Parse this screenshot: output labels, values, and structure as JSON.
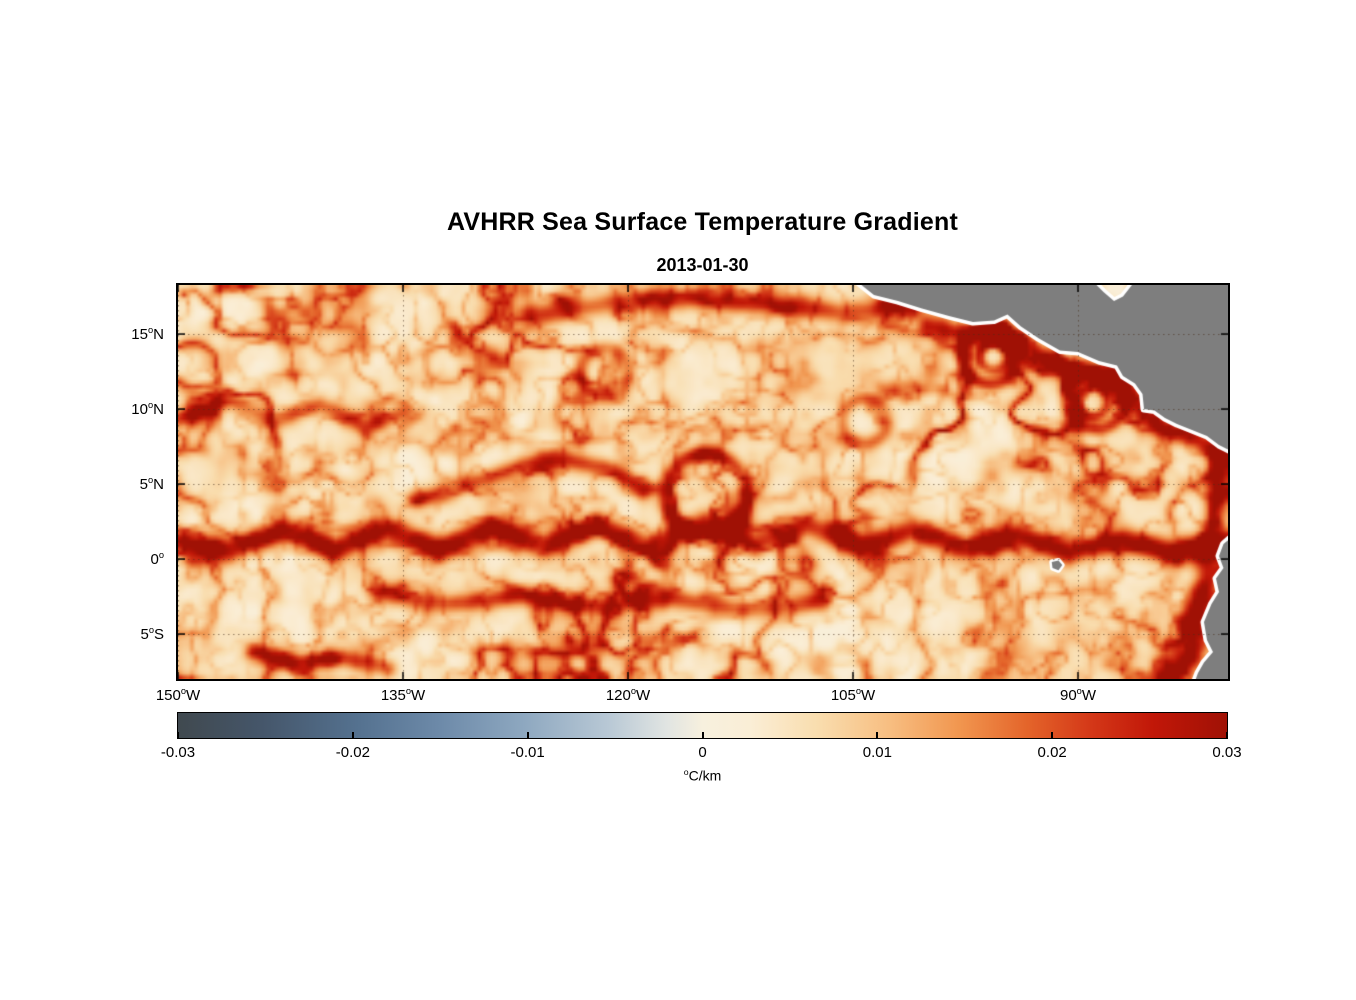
{
  "chart_data": {
    "type": "heatmap",
    "title": "AVHRR Sea Surface Temperature Gradient",
    "subtitle": "2013-01-30",
    "variable": "sea surface temperature gradient",
    "units": "°C/km",
    "lon_range": [
      -150,
      -80
    ],
    "lat_range": [
      -8,
      18.27
    ],
    "grid": {
      "show": true,
      "style": "dotted",
      "color": "rgba(70,45,25,0.55)"
    },
    "x_ticks": [
      {
        "value": -150,
        "label": "150°W"
      },
      {
        "value": -135,
        "label": "135°W"
      },
      {
        "value": -120,
        "label": "120°W"
      },
      {
        "value": -105,
        "label": "105°W"
      },
      {
        "value": -90,
        "label": "90°W"
      }
    ],
    "y_ticks": [
      {
        "value": 15,
        "label": "15°N"
      },
      {
        "value": 10,
        "label": "10°N"
      },
      {
        "value": 5,
        "label": "5°N"
      },
      {
        "value": 0,
        "label": "0°"
      },
      {
        "value": -5,
        "label": "5°S"
      }
    ],
    "colorbar": {
      "min": -0.03,
      "max": 0.03,
      "label": "°C/km",
      "ticks": [
        {
          "value": -0.03,
          "label": "-0.03"
        },
        {
          "value": -0.02,
          "label": "-0.02"
        },
        {
          "value": -0.01,
          "label": "-0.01"
        },
        {
          "value": 0,
          "label": "0"
        },
        {
          "value": 0.01,
          "label": "0.01"
        },
        {
          "value": 0.02,
          "label": "0.02"
        },
        {
          "value": 0.03,
          "label": "0.03"
        }
      ],
      "stops": [
        {
          "t": 0.0,
          "c": "#40494f"
        },
        {
          "t": 0.08,
          "c": "#45566a"
        },
        {
          "t": 0.17,
          "c": "#54718f"
        },
        {
          "t": 0.25,
          "c": "#6d8aa9"
        },
        {
          "t": 0.33,
          "c": "#8ea8c0"
        },
        {
          "t": 0.41,
          "c": "#b8c8d5"
        },
        {
          "t": 0.465,
          "c": "#e0e4e2"
        },
        {
          "t": 0.5,
          "c": "#f7f0de"
        },
        {
          "t": 0.545,
          "c": "#faeed6"
        },
        {
          "t": 0.61,
          "c": "#f9ddae"
        },
        {
          "t": 0.68,
          "c": "#f7bd80"
        },
        {
          "t": 0.745,
          "c": "#f1964f"
        },
        {
          "t": 0.81,
          "c": "#e4642a"
        },
        {
          "t": 0.87,
          "c": "#d43818"
        },
        {
          "t": 0.93,
          "c": "#c11708"
        },
        {
          "t": 1.0,
          "c": "#a01105"
        }
      ]
    },
    "ocean_base_color": "#fbf1dc",
    "land": {
      "color": "#7e7e7e",
      "coast_halo": "#ffffff",
      "polygons": [
        {
          "name": "central-america",
          "halo": 7,
          "points": [
            [
              -104.6,
              18.4
            ],
            [
              -103.6,
              17.6
            ],
            [
              -102.0,
              17.2
            ],
            [
              -100.4,
              16.7
            ],
            [
              -98.6,
              16.2
            ],
            [
              -97.0,
              15.8
            ],
            [
              -95.6,
              15.9
            ],
            [
              -94.7,
              16.3
            ],
            [
              -93.8,
              15.5
            ],
            [
              -92.6,
              14.7
            ],
            [
              -91.2,
              13.9
            ],
            [
              -90.0,
              13.8
            ],
            [
              -88.6,
              13.2
            ],
            [
              -87.4,
              12.9
            ],
            [
              -87.0,
              12.2
            ],
            [
              -86.2,
              11.7
            ],
            [
              -85.7,
              11.0
            ],
            [
              -85.6,
              10.0
            ],
            [
              -84.9,
              9.9
            ],
            [
              -84.2,
              9.4
            ],
            [
              -83.4,
              9.0
            ],
            [
              -82.4,
              8.6
            ],
            [
              -81.4,
              8.2
            ],
            [
              -80.6,
              7.6
            ],
            [
              -79.6,
              7.1
            ],
            [
              -79.6,
              18.4
            ],
            [
              -86.3,
              18.4
            ],
            [
              -87.0,
              17.5
            ],
            [
              -87.6,
              17.2
            ],
            [
              -88.3,
              17.8
            ],
            [
              -88.9,
              18.4
            ]
          ]
        },
        {
          "name": "south-america",
          "halo": 7,
          "points": [
            [
              -79.6,
              1.6
            ],
            [
              -80.3,
              1.0
            ],
            [
              -80.6,
              0.2
            ],
            [
              -80.3,
              -0.6
            ],
            [
              -80.8,
              -1.3
            ],
            [
              -80.6,
              -2.2
            ],
            [
              -81.1,
              -3.0
            ],
            [
              -81.6,
              -4.2
            ],
            [
              -81.4,
              -5.4
            ],
            [
              -81.0,
              -6.2
            ],
            [
              -81.6,
              -6.9
            ],
            [
              -82.0,
              -7.6
            ],
            [
              -82.3,
              -8.4
            ],
            [
              -79.6,
              -8.4
            ]
          ]
        },
        {
          "name": "galapagos-islands",
          "halo": 5,
          "points": [
            [
              -91.75,
              -0.2
            ],
            [
              -91.3,
              -0.1
            ],
            [
              -91.05,
              -0.4
            ],
            [
              -91.3,
              -0.75
            ],
            [
              -91.7,
              -0.6
            ]
          ]
        }
      ]
    },
    "features": [
      {
        "name": "equatorial-front",
        "type": "front",
        "strength": 0.028,
        "width": 0.8,
        "points": [
          [
            -150,
            1.1
          ],
          [
            -146.5,
            0.5
          ],
          [
            -143,
            1.9
          ],
          [
            -139.5,
            0.6
          ],
          [
            -136,
            2.0
          ],
          [
            -132.5,
            0.6
          ],
          [
            -129,
            2.1
          ],
          [
            -125.5,
            0.7
          ],
          [
            -122,
            2.3
          ],
          [
            -118.5,
            0.8
          ],
          [
            -115,
            2.4
          ],
          [
            -111.5,
            0.9
          ],
          [
            -108,
            2.3
          ],
          [
            -104.5,
            0.8
          ],
          [
            -101,
            2.0
          ],
          [
            -97.5,
            0.7
          ],
          [
            -94,
            1.7
          ],
          [
            -90.5,
            0.5
          ],
          [
            -87,
            1.3
          ],
          [
            -83.5,
            0.4
          ],
          [
            -80,
            0.9
          ]
        ]
      },
      {
        "name": "countercurrent-front",
        "type": "front",
        "strength": 0.02,
        "width": 0.65,
        "points": [
          [
            -134,
            4.0
          ],
          [
            -130,
            5.2
          ],
          [
            -127,
            6.3
          ],
          [
            -124,
            6.6
          ],
          [
            -121,
            5.9
          ],
          [
            -119,
            4.6
          ]
        ]
      },
      {
        "name": "north-band",
        "type": "front",
        "strength": 0.022,
        "width": 0.75,
        "points": [
          [
            -126,
            16.2
          ],
          [
            -121,
            17.1
          ],
          [
            -116,
            17.4
          ],
          [
            -111,
            17.0
          ],
          [
            -106,
            16.5
          ],
          [
            -101,
            16.8
          ]
        ]
      },
      {
        "name": "northwest-filament",
        "type": "front",
        "strength": 0.018,
        "width": 0.6,
        "points": [
          [
            -150,
            9.3
          ],
          [
            -146.5,
            10.6
          ],
          [
            -143.5,
            9.2
          ],
          [
            -140.5,
            10.3
          ],
          [
            -137.5,
            8.8
          ],
          [
            -135,
            9.8
          ]
        ]
      },
      {
        "name": "south-america-coastal-front",
        "type": "front",
        "strength": 0.026,
        "width": 0.85,
        "points": [
          [
            -80.2,
            7.2
          ],
          [
            -80.8,
            5.2
          ],
          [
            -80.6,
            3.4
          ],
          [
            -81.0,
            1.6
          ],
          [
            -81.5,
            0.2
          ],
          [
            -81.3,
            -1.2
          ],
          [
            -81.9,
            -2.8
          ],
          [
            -82.5,
            -4.4
          ],
          [
            -82.2,
            -5.8
          ],
          [
            -83.2,
            -7.2
          ],
          [
            -83.8,
            -8.2
          ]
        ]
      },
      {
        "name": "central-america-coastal-front",
        "type": "front",
        "strength": 0.02,
        "width": 0.7,
        "points": [
          [
            -100,
            15.6
          ],
          [
            -97,
            14.9
          ],
          [
            -95,
            15.0
          ],
          [
            -93,
            13.9
          ],
          [
            -91,
            12.9
          ],
          [
            -89,
            12.2
          ],
          [
            -87,
            11.6
          ],
          [
            -85.5,
            9.6
          ],
          [
            -84,
            8.6
          ],
          [
            -82,
            7.9
          ],
          [
            -80.5,
            6.9
          ]
        ]
      },
      {
        "name": "south-band",
        "type": "front",
        "strength": 0.018,
        "width": 0.7,
        "points": [
          [
            -137,
            -2.2
          ],
          [
            -132,
            -3.0
          ],
          [
            -127,
            -2.4
          ],
          [
            -122,
            -3.2
          ],
          [
            -117,
            -2.6
          ],
          [
            -112,
            -3.4
          ],
          [
            -107,
            -2.8
          ]
        ]
      },
      {
        "name": "southwest-filament",
        "type": "front",
        "strength": 0.02,
        "width": 0.6,
        "points": [
          [
            -145,
            -6.2
          ],
          [
            -142,
            -6.9
          ],
          [
            -139,
            -6.6
          ],
          [
            -136,
            -7.3
          ]
        ]
      },
      {
        "name": "tehuantepec-eddy-outer",
        "type": "ring",
        "strength": 0.024,
        "width": 0.5,
        "center": [
          -95.8,
          13.6
        ],
        "radius": 1.9
      },
      {
        "name": "tehuantepec-eddy-inner",
        "type": "ring",
        "strength": 0.024,
        "width": 0.38,
        "center": [
          -95.6,
          13.5
        ],
        "radius": 0.9
      },
      {
        "name": "papagayo-eddy-outer",
        "type": "ring",
        "strength": 0.022,
        "width": 0.5,
        "center": [
          -88.8,
          10.6
        ],
        "radius": 1.9
      },
      {
        "name": "papagayo-eddy-inner",
        "type": "ring",
        "strength": 0.02,
        "width": 0.38,
        "center": [
          -89.0,
          10.5
        ],
        "radius": 0.95
      },
      {
        "name": "mid-basin-loop",
        "type": "ring",
        "strength": 0.022,
        "width": 0.55,
        "center": [
          -114.8,
          4.3
        ],
        "radius": 2.7
      },
      {
        "name": "coastal-arc",
        "type": "ring",
        "strength": 0.016,
        "width": 0.5,
        "center": [
          -104.2,
          9.2
        ],
        "radius": 1.5
      },
      {
        "name": "offshore-eddy",
        "type": "ring",
        "strength": 0.015,
        "width": 0.5,
        "center": [
          -121.5,
          12.5
        ],
        "radius": 1.6
      }
    ]
  }
}
